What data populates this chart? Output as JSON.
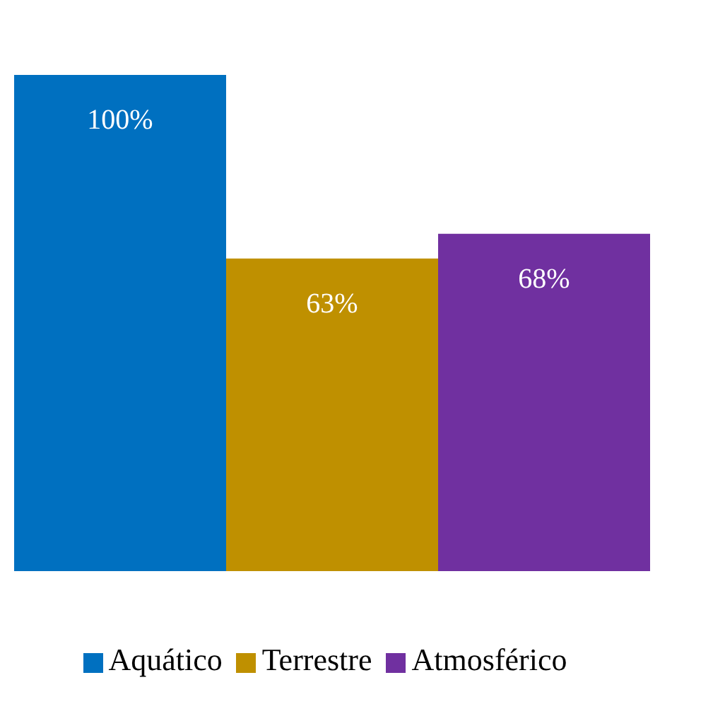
{
  "chart_data": {
    "type": "bar",
    "categories": [
      null
    ],
    "legend": "bottom",
    "series": [
      {
        "name": "Aquático",
        "color": "#0070c0",
        "values": [
          100
        ],
        "value_labels": [
          "100%"
        ]
      },
      {
        "name": "Terrestre",
        "color": "#bf9000",
        "values": [
          63
        ],
        "value_labels": [
          "63%"
        ]
      },
      {
        "name": "Atmosférico",
        "color": "#7030a0",
        "values": [
          68
        ],
        "value_labels": [
          "68%"
        ]
      }
    ]
  }
}
